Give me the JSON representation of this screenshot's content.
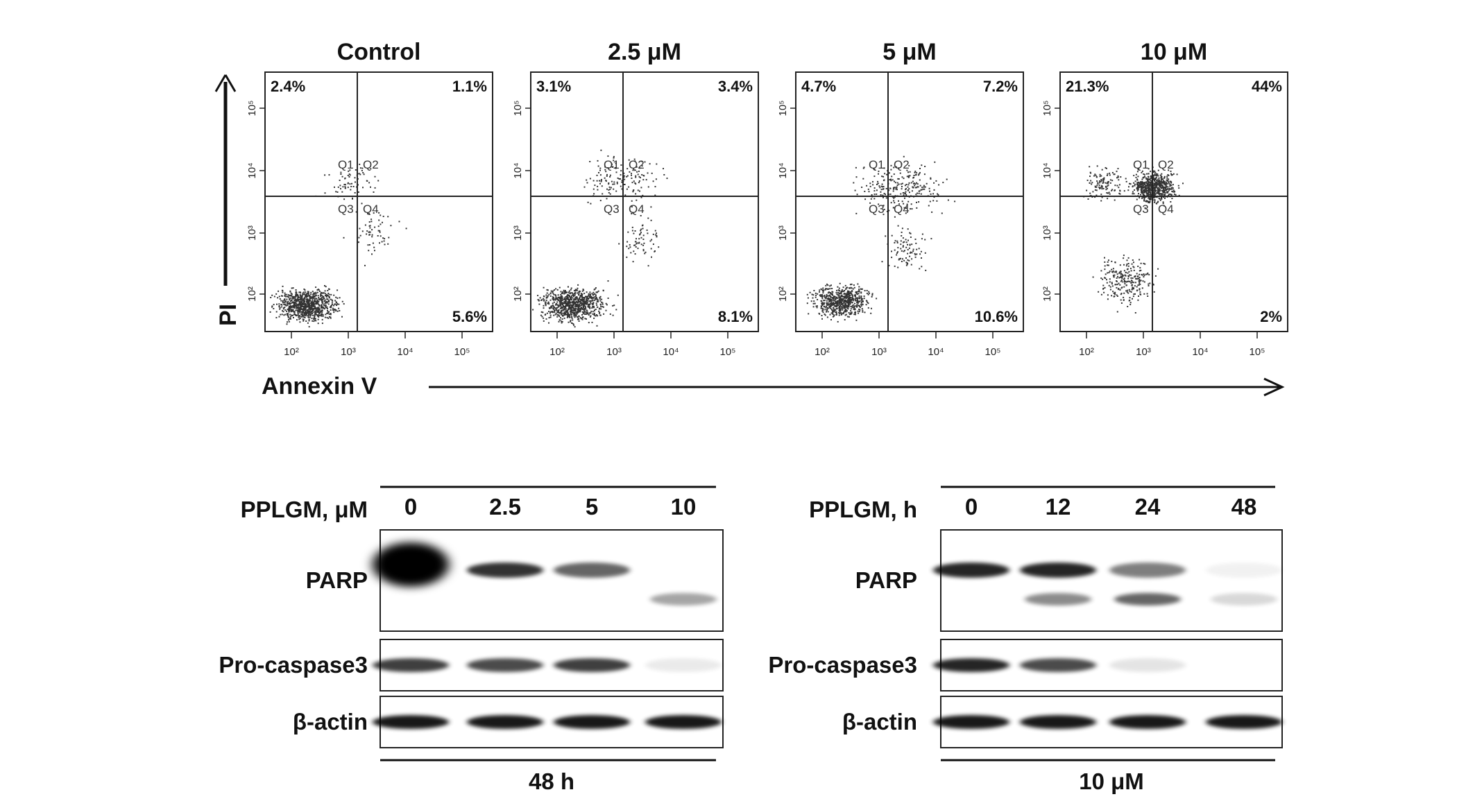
{
  "flow_cytometry": {
    "x_axis_label": "Annexin V",
    "y_axis_label": "PI",
    "tick_labels": [
      "10²",
      "10³",
      "10⁴",
      "10⁵"
    ],
    "quadrant_labels": [
      "Q1",
      "Q2",
      "Q3",
      "Q4"
    ],
    "panels": [
      {
        "title": "Control",
        "ul": "2.4%",
        "ur": "1.1%",
        "lr": "5.6%"
      },
      {
        "title": "2.5 μM",
        "ul": "3.1%",
        "ur": "3.4%",
        "lr": "8.1%"
      },
      {
        "title": "5 μM",
        "ul": "4.7%",
        "ur": "7.2%",
        "lr": "10.6%"
      },
      {
        "title": "10 μM",
        "ul": "21.3%",
        "ur": "44%",
        "lr": "2%"
      }
    ]
  },
  "western_blots": [
    {
      "header": "PPLGM, μM",
      "lanes": [
        "0",
        "2.5",
        "5",
        "10"
      ],
      "footer": "48 h",
      "rows": [
        {
          "label": "PARP",
          "full": [
            1.0,
            0.8,
            0.6,
            0.0
          ],
          "cleaved": [
            0.0,
            0.0,
            0.0,
            0.35
          ]
        },
        {
          "label": "Pro-caspase3",
          "full": [
            0.75,
            0.7,
            0.75,
            0.08
          ]
        },
        {
          "label": "β-actin",
          "full": [
            0.9,
            0.9,
            0.9,
            0.9
          ]
        }
      ]
    },
    {
      "header": "PPLGM, h",
      "lanes": [
        "0",
        "12",
        "24",
        "48"
      ],
      "footer": "10 μM",
      "rows": [
        {
          "label": "PARP",
          "full": [
            0.85,
            0.85,
            0.5,
            0.05
          ],
          "cleaved": [
            0.0,
            0.45,
            0.6,
            0.15
          ]
        },
        {
          "label": "Pro-caspase3",
          "full": [
            0.85,
            0.7,
            0.1,
            0.0
          ]
        },
        {
          "label": "β-actin",
          "full": [
            0.9,
            0.9,
            0.9,
            0.9
          ]
        }
      ]
    }
  ]
}
